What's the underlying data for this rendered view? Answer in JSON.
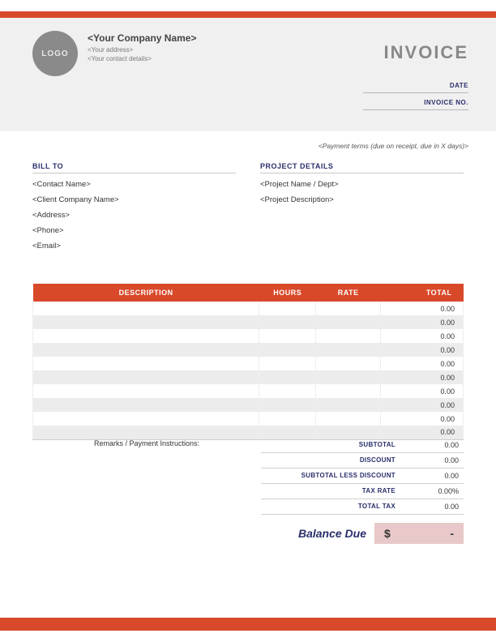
{
  "colors": {
    "accent": "#d8492a",
    "header_band": "#f0f0f0",
    "label_navy": "#2a2f6b",
    "balance_box": "#e8c8c8",
    "stripe": "#ececec"
  },
  "logo": {
    "text": "LOGO"
  },
  "company": {
    "name": "<Your Company Name>",
    "address": "<Your address>",
    "contact": "<Your contact details>"
  },
  "invoice": {
    "title": "INVOICE",
    "date_label": "DATE",
    "invoice_no_label": "INVOICE NO."
  },
  "payment_terms": "<Payment terms (due on receipt, due in X days)>",
  "bill_to": {
    "label": "BILL TO",
    "contact_name": "<Contact Name>",
    "client_company": "<Client Company Name>",
    "address": "<Address>",
    "phone": "<Phone>",
    "email": "<Email>"
  },
  "project": {
    "label": "PROJECT DETAILS",
    "name": "<Project Name / Dept>",
    "description": "<Project Description>"
  },
  "table": {
    "headers": {
      "description": "DESCRIPTION",
      "hours": "HOURS",
      "rate": "RATE",
      "total": "TOTAL"
    },
    "rows": [
      {
        "description": "",
        "hours": "",
        "rate": "",
        "total": "0.00"
      },
      {
        "description": "",
        "hours": "",
        "rate": "",
        "total": "0.00"
      },
      {
        "description": "",
        "hours": "",
        "rate": "",
        "total": "0.00"
      },
      {
        "description": "",
        "hours": "",
        "rate": "",
        "total": "0.00"
      },
      {
        "description": "",
        "hours": "",
        "rate": "",
        "total": "0.00"
      },
      {
        "description": "",
        "hours": "",
        "rate": "",
        "total": "0.00"
      },
      {
        "description": "",
        "hours": "",
        "rate": "",
        "total": "0.00"
      },
      {
        "description": "",
        "hours": "",
        "rate": "",
        "total": "0.00"
      },
      {
        "description": "",
        "hours": "",
        "rate": "",
        "total": "0.00"
      },
      {
        "description": "",
        "hours": "",
        "rate": "",
        "total": "0.00"
      }
    ]
  },
  "remarks_label": "Remarks / Payment Instructions:",
  "totals": {
    "subtotal": {
      "label": "SUBTOTAL",
      "value": "0.00"
    },
    "discount": {
      "label": "DISCOUNT",
      "value": "0.00"
    },
    "subtotal_less_discount": {
      "label": "SUBTOTAL LESS DISCOUNT",
      "value": "0.00"
    },
    "tax_rate": {
      "label": "TAX RATE",
      "value": "0.00%"
    },
    "total_tax": {
      "label": "TOTAL TAX",
      "value": "0.00"
    }
  },
  "balance": {
    "label": "Balance Due",
    "currency": "$",
    "value": "-"
  }
}
